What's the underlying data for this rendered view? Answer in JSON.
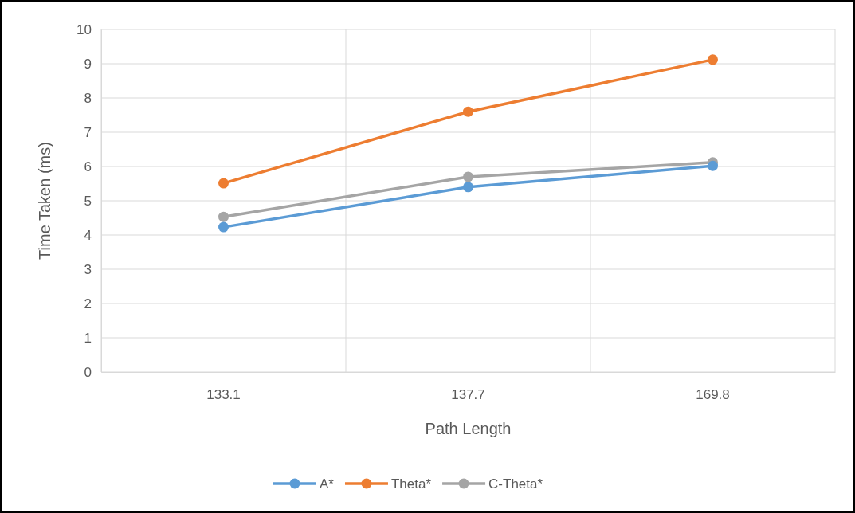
{
  "chart_data": {
    "type": "line",
    "xlabel": "Path Length",
    "ylabel": "Time Taken (ms)",
    "categories": [
      "133.1",
      "137.7",
      "169.8"
    ],
    "series": [
      {
        "name": "A*",
        "color": "#5b9bd5",
        "values": [
          4.23,
          5.4,
          6.02
        ]
      },
      {
        "name": "Theta*",
        "color": "#ed7d31",
        "values": [
          5.51,
          7.6,
          9.12
        ]
      },
      {
        "name": "C-Theta*",
        "color": "#a5a5a5",
        "values": [
          4.53,
          5.7,
          6.12
        ]
      }
    ],
    "ylim": [
      0,
      10
    ],
    "yticks": [
      0,
      1,
      2,
      3,
      4,
      5,
      6,
      7,
      8,
      9,
      10
    ],
    "grid": true,
    "legend": "bottom",
    "marker": "circle",
    "line_style": "solid"
  }
}
